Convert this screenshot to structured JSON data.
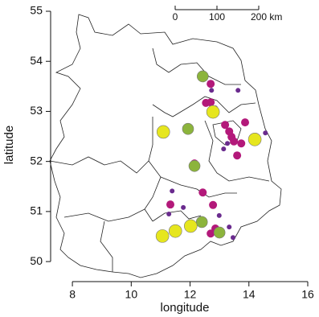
{
  "chart_data": {
    "type": "scatter",
    "xlabel": "longitude",
    "ylabel": "latitude",
    "xlim": [
      7.26,
      16
    ],
    "ylim": [
      49.6,
      55
    ],
    "xticks": [
      8,
      10,
      12,
      14,
      16
    ],
    "yticks": [
      50,
      51,
      52,
      53,
      54,
      55
    ],
    "scale_bar": {
      "ticks": [
        0,
        100,
        {
          "value": 200,
          "label": "200 km"
        }
      ]
    },
    "series": [
      {
        "color": "#b3197a",
        "x": [
          12.7,
          12.54,
          12.7,
          13.19,
          13.33,
          13.41,
          13.49,
          13.74,
          13.87,
          14.23,
          13.6,
          12.15,
          12.43,
          11.33,
          12.78,
          12.7,
          12.86
        ],
        "values": [
          53.55,
          53.17,
          53.18,
          52.73,
          52.6,
          52.49,
          52.4,
          52.36,
          52.78,
          52.49,
          52.12,
          51.96,
          51.38,
          51.14,
          51.13,
          50.56,
          50.66
        ]
      },
      {
        "color": "#6a2b8e",
        "x": [
          12.73,
          13.63,
          12.86,
          13.14,
          13.27,
          14.56,
          11.39,
          11.77,
          11.28,
          12.99,
          13.33,
          13.46
        ],
        "values": [
          53.42,
          53.42,
          53.07,
          52.25,
          52.36,
          52.57,
          51.41,
          51.08,
          50.95,
          50.92,
          50.69,
          50.48
        ]
      },
      {
        "color": "#8cb43c",
        "x": [
          12.43,
          11.93,
          12.15,
          12.4,
          13.0
        ],
        "values": [
          53.7,
          52.65,
          51.91,
          50.79,
          50.58
        ]
      },
      {
        "color": "#e6e61e",
        "x": [
          12.78,
          11.09,
          14.2,
          12.02,
          11.5,
          11.06
        ],
        "values": [
          52.99,
          52.59,
          52.44,
          50.71,
          50.61,
          50.51
        ]
      }
    ]
  }
}
